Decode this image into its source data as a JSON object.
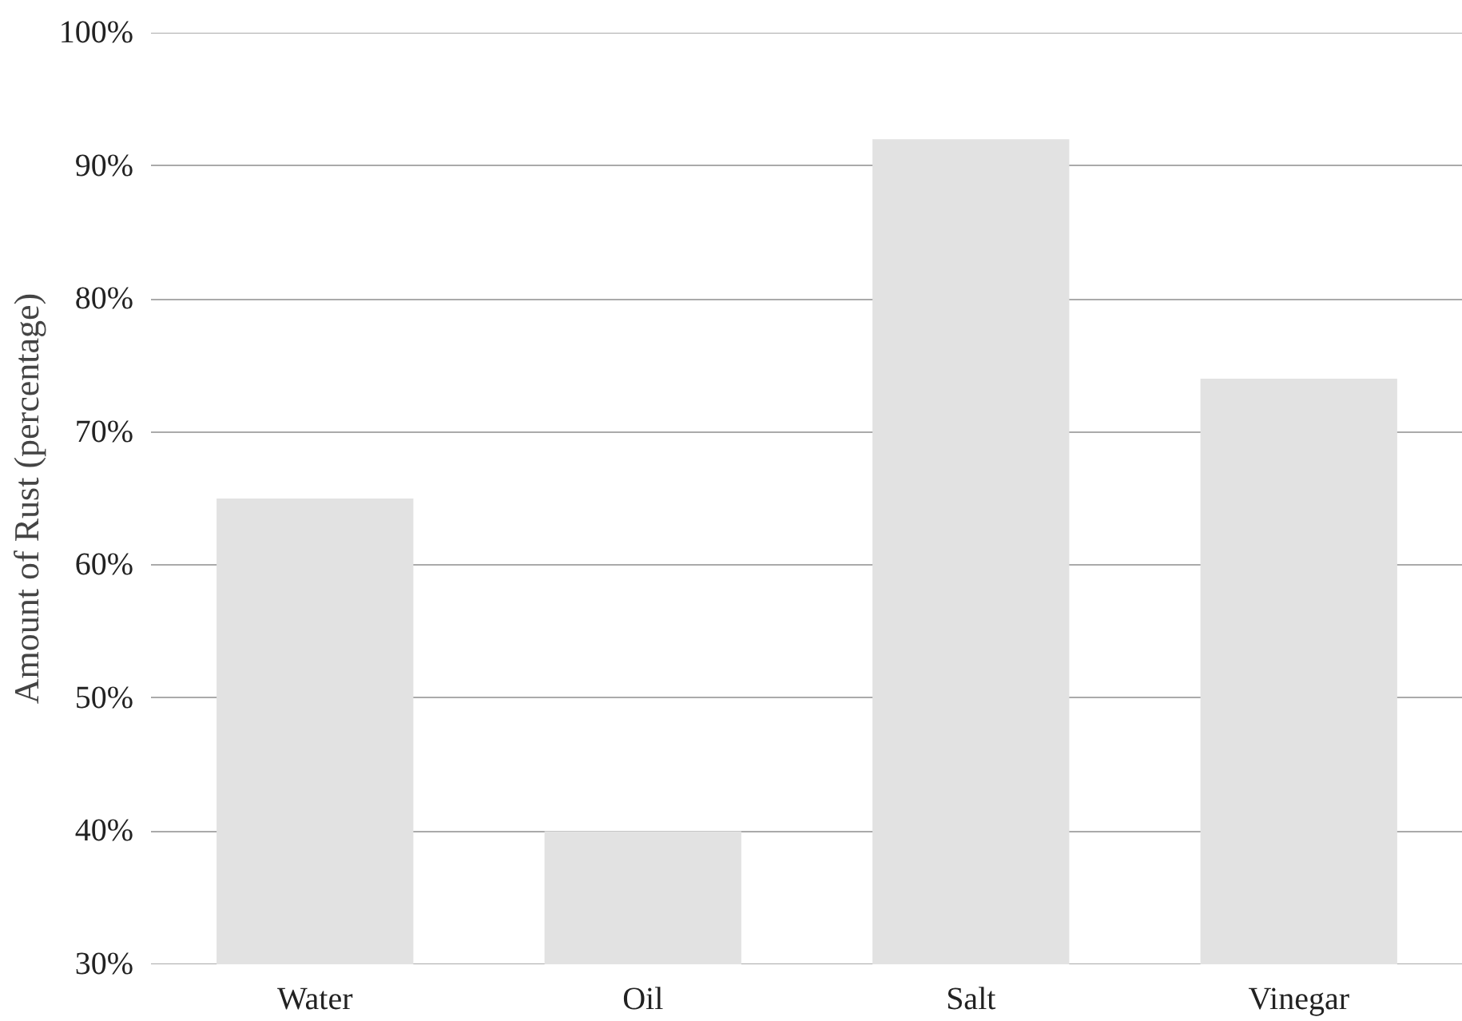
{
  "chart_data": {
    "type": "bar",
    "ylabel": "Amount of Rust (percentage)",
    "categories": [
      "Water",
      "Oil",
      "Salt",
      "Vinegar"
    ],
    "values": [
      65,
      40,
      92,
      74
    ],
    "color": "#e2e2e2",
    "ylim": [
      30,
      100
    ],
    "yticks": [
      {
        "value": 30,
        "label": "30%"
      },
      {
        "value": 40,
        "label": "40%"
      },
      {
        "value": 50,
        "label": "50%"
      },
      {
        "value": 60,
        "label": "60%"
      },
      {
        "value": 70,
        "label": "70%"
      },
      {
        "value": 80,
        "label": "80%"
      },
      {
        "value": 90,
        "label": "90%"
      },
      {
        "value": 100,
        "label": "100%"
      }
    ],
    "grid": "y"
  }
}
